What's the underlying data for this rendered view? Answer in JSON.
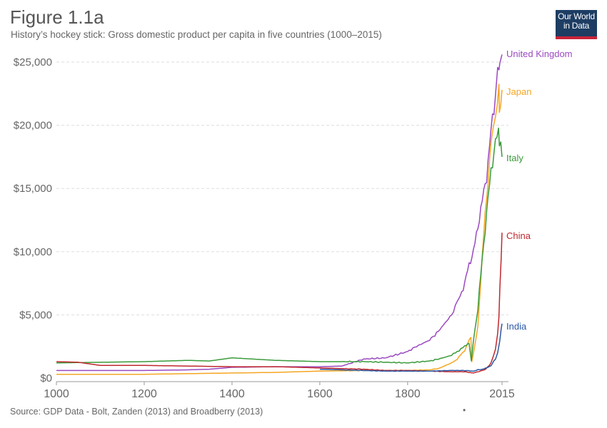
{
  "header": {
    "title": "Figure 1.1a",
    "subtitle": "History’s hockey stick: Gross domestic product per capita in five countries (1000–2015)"
  },
  "logo": {
    "line1": "Our World",
    "line2": "in Data",
    "bg": "#1d3d63",
    "accent": "#c8233a"
  },
  "footer": {
    "source": "Source: GDP Data - Bolt, Zanden (2013) and Broadberry (2013)",
    "dot": "•"
  },
  "chart_data": {
    "type": "line",
    "xlim": [
      1000,
      2015
    ],
    "ylim": [
      0,
      25000
    ],
    "x_ticks": [
      1000,
      1200,
      1400,
      1600,
      1800,
      2015
    ],
    "x_tick_labels": [
      "1000",
      "1200",
      "1400",
      "1600",
      "1800",
      "2015"
    ],
    "y_ticks": [
      0,
      5000,
      10000,
      15000,
      20000,
      25000
    ],
    "y_tick_labels": [
      "$0",
      "$5,000",
      "$10,000",
      "$15,000",
      "$20,000",
      "$25,000"
    ],
    "grid": true,
    "series": [
      {
        "name": "United Kingdom",
        "color": "#9b49c0",
        "points": [
          [
            1000,
            600
          ],
          [
            1100,
            600
          ],
          [
            1200,
            600
          ],
          [
            1300,
            650
          ],
          [
            1348,
            700
          ],
          [
            1400,
            850
          ],
          [
            1500,
            900
          ],
          [
            1600,
            900
          ],
          [
            1650,
            950
          ],
          [
            1700,
            1500
          ],
          [
            1750,
            1600
          ],
          [
            1800,
            2100
          ],
          [
            1820,
            2500
          ],
          [
            1850,
            3000
          ],
          [
            1870,
            3700
          ],
          [
            1900,
            5000
          ],
          [
            1913,
            6000
          ],
          [
            1920,
            6500
          ],
          [
            1930,
            7500
          ],
          [
            1940,
            9000
          ],
          [
            1950,
            10000
          ],
          [
            1960,
            12000
          ],
          [
            1970,
            14000
          ],
          [
            1980,
            16000
          ],
          [
            1990,
            19500
          ],
          [
            2000,
            22500
          ],
          [
            2005,
            24500
          ],
          [
            2008,
            25000
          ],
          [
            2010,
            24200
          ],
          [
            2015,
            25600
          ]
        ]
      },
      {
        "name": "Japan",
        "color": "#f5a623",
        "points": [
          [
            1000,
            300
          ],
          [
            1200,
            300
          ],
          [
            1400,
            400
          ],
          [
            1500,
            450
          ],
          [
            1600,
            550
          ],
          [
            1700,
            600
          ],
          [
            1800,
            600
          ],
          [
            1850,
            650
          ],
          [
            1870,
            750
          ],
          [
            1900,
            1200
          ],
          [
            1913,
            1500
          ],
          [
            1930,
            2200
          ],
          [
            1940,
            3000
          ],
          [
            1944,
            3200
          ],
          [
            1946,
            1300
          ],
          [
            1950,
            2000
          ],
          [
            1960,
            4000
          ],
          [
            1970,
            9700
          ],
          [
            1973,
            11500
          ],
          [
            1980,
            14000
          ],
          [
            1990,
            19000
          ],
          [
            1995,
            20500
          ],
          [
            2000,
            21000
          ],
          [
            2008,
            22500
          ],
          [
            2009,
            21200
          ],
          [
            2015,
            22800
          ]
        ]
      },
      {
        "name": "Italy",
        "color": "#3a9a3a",
        "points": [
          [
            1000,
            1200
          ],
          [
            1100,
            1250
          ],
          [
            1200,
            1300
          ],
          [
            1300,
            1400
          ],
          [
            1348,
            1350
          ],
          [
            1400,
            1600
          ],
          [
            1450,
            1500
          ],
          [
            1500,
            1400
          ],
          [
            1600,
            1300
          ],
          [
            1700,
            1300
          ],
          [
            1750,
            1250
          ],
          [
            1800,
            1200
          ],
          [
            1850,
            1350
          ],
          [
            1870,
            1500
          ],
          [
            1900,
            1800
          ],
          [
            1913,
            2100
          ],
          [
            1930,
            2500
          ],
          [
            1940,
            2800
          ],
          [
            1945,
            1400
          ],
          [
            1950,
            3000
          ],
          [
            1960,
            5500
          ],
          [
            1970,
            9500
          ],
          [
            1980,
            13000
          ],
          [
            1990,
            16500
          ],
          [
            2000,
            18500
          ],
          [
            2007,
            19800
          ],
          [
            2009,
            18400
          ],
          [
            2012,
            18200
          ],
          [
            2015,
            17500
          ]
        ]
      },
      {
        "name": "China",
        "color": "#c0282f",
        "points": [
          [
            1000,
            1300
          ],
          [
            1050,
            1250
          ],
          [
            1100,
            1000
          ],
          [
            1200,
            1000
          ],
          [
            1300,
            950
          ],
          [
            1400,
            900
          ],
          [
            1500,
            900
          ],
          [
            1600,
            800
          ],
          [
            1700,
            700
          ],
          [
            1750,
            600
          ],
          [
            1800,
            600
          ],
          [
            1850,
            550
          ],
          [
            1900,
            500
          ],
          [
            1930,
            500
          ],
          [
            1950,
            400
          ],
          [
            1960,
            500
          ],
          [
            1970,
            600
          ],
          [
            1978,
            700
          ],
          [
            1990,
            1200
          ],
          [
            1995,
            1700
          ],
          [
            2000,
            2300
          ],
          [
            2005,
            3500
          ],
          [
            2008,
            5000
          ],
          [
            2010,
            6800
          ],
          [
            2013,
            9500
          ],
          [
            2015,
            11500
          ]
        ]
      },
      {
        "name": "India",
        "color": "#2a58a5",
        "points": [
          [
            1600,
            700
          ],
          [
            1650,
            650
          ],
          [
            1700,
            600
          ],
          [
            1750,
            550
          ],
          [
            1800,
            550
          ],
          [
            1850,
            550
          ],
          [
            1900,
            600
          ],
          [
            1930,
            600
          ],
          [
            1950,
            550
          ],
          [
            1960,
            650
          ],
          [
            1970,
            700
          ],
          [
            1980,
            800
          ],
          [
            1990,
            1000
          ],
          [
            2000,
            1500
          ],
          [
            2005,
            2000
          ],
          [
            2010,
            3000
          ],
          [
            2013,
            3800
          ],
          [
            2015,
            4300
          ]
        ]
      }
    ]
  }
}
